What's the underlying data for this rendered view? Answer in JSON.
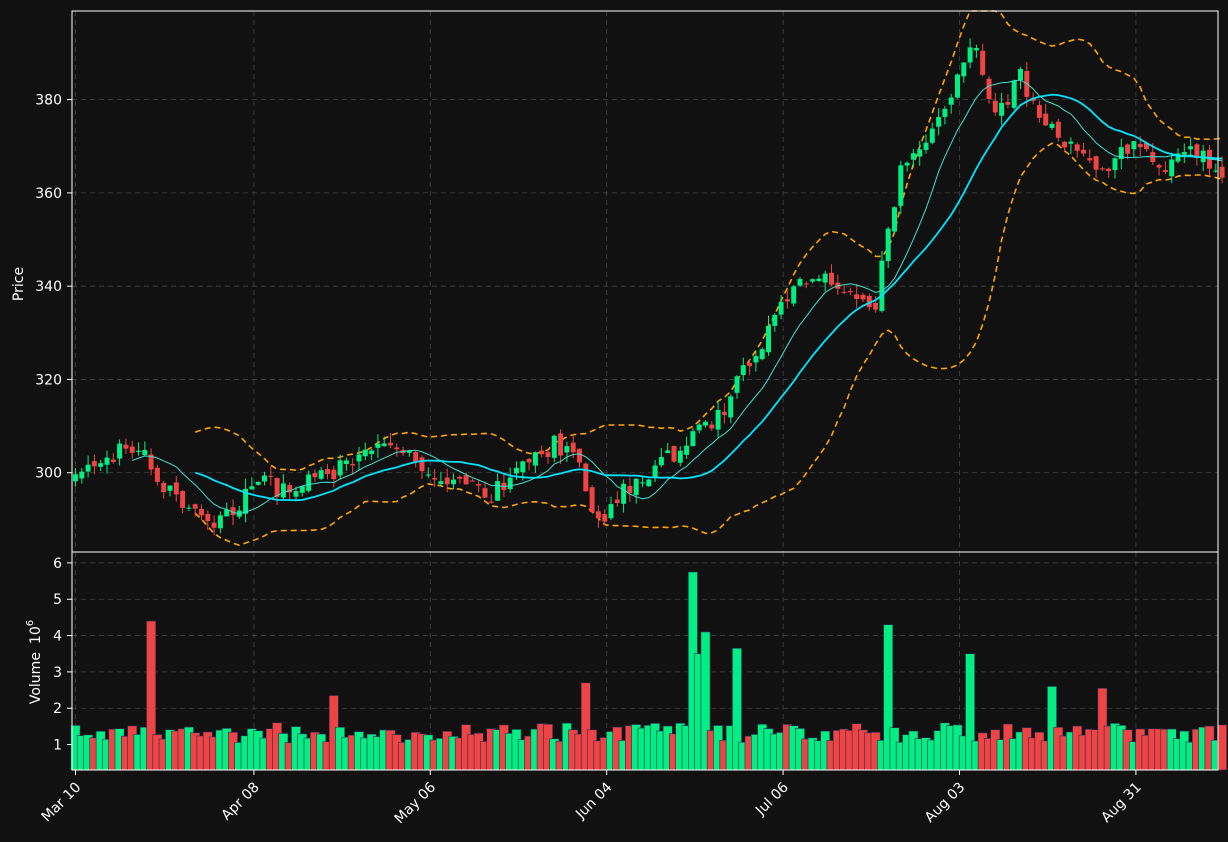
{
  "chart_data": [
    {
      "type": "candlestick",
      "panel": "price",
      "ylabel": "Price",
      "ylim": [
        283,
        399
      ],
      "yticks": [
        "300",
        "320",
        "340",
        "360",
        "380"
      ],
      "grid": true,
      "date_start": "2024-03-10",
      "xticks": [
        "Mar 10",
        "Apr 08",
        "May 06",
        "Jun 04",
        "Jul 06",
        "Aug 03",
        "Aug 31"
      ],
      "close_path": [
        [
          "2024-03-10",
          300
        ],
        [
          "2024-03-16",
          304
        ],
        [
          "2024-03-20",
          305
        ],
        [
          "2024-03-25",
          296
        ],
        [
          "2024-03-31",
          288
        ],
        [
          "2024-04-04",
          292
        ],
        [
          "2024-04-08",
          298
        ],
        [
          "2024-04-13",
          296
        ],
        [
          "2024-04-18",
          299
        ],
        [
          "2024-04-23",
          302
        ],
        [
          "2024-04-28",
          306
        ],
        [
          "2024-05-03",
          302
        ],
        [
          "2024-05-10",
          297
        ],
        [
          "2024-05-15",
          295
        ],
        [
          "2024-05-19",
          300
        ],
        [
          "2024-05-25",
          306
        ],
        [
          "2024-05-29",
          302
        ],
        [
          "2024-06-01",
          289
        ],
        [
          "2024-06-04",
          295
        ],
        [
          "2024-06-10",
          300
        ],
        [
          "2024-06-15",
          307
        ],
        [
          "2024-06-20",
          312
        ],
        [
          "2024-06-27",
          328
        ],
        [
          "2024-07-01",
          338
        ],
        [
          "2024-07-06",
          342
        ],
        [
          "2024-07-11",
          338
        ],
        [
          "2024-07-15",
          336
        ],
        [
          "2024-07-19",
          366
        ],
        [
          "2024-07-24",
          372
        ],
        [
          "2024-07-29",
          388
        ],
        [
          "2024-07-31",
          392
        ],
        [
          "2024-08-03",
          376
        ],
        [
          "2024-08-07",
          385
        ],
        [
          "2024-08-10",
          376
        ],
        [
          "2024-08-14",
          370
        ],
        [
          "2024-08-20",
          365
        ],
        [
          "2024-08-25",
          370
        ],
        [
          "2024-08-30",
          366
        ],
        [
          "2024-09-03",
          370
        ],
        [
          "2024-09-08",
          365
        ]
      ],
      "overlays": [
        {
          "kind": "moving_average",
          "color": "#40e0d0"
        },
        {
          "kind": "moving_average",
          "color": "#00e5ff"
        },
        {
          "kind": "bollinger_band",
          "color": "#ffa500"
        }
      ],
      "up_color": "#00ee82",
      "down_color": "#ee4444",
      "background": "#111111",
      "grid_color": "#444444"
    },
    {
      "type": "bar",
      "panel": "volume",
      "ylabel": "Volume",
      "ylabel_exp": "6",
      "ylabel_exp_base": "10",
      "ylim": [
        0.3,
        6.3
      ],
      "yticks": [
        "1",
        "2",
        "3",
        "4",
        "5",
        "6"
      ],
      "grid": true,
      "peaks": [
        [
          "2024-03-22",
          4.4
        ],
        [
          "2024-04-20",
          2.35
        ],
        [
          "2024-05-30",
          2.7
        ],
        [
          "2024-06-16",
          5.75
        ],
        [
          "2024-06-17",
          3.5
        ],
        [
          "2024-06-18",
          4.1
        ],
        [
          "2024-06-23",
          3.65
        ],
        [
          "2024-07-17",
          4.3
        ],
        [
          "2024-07-30",
          3.5
        ],
        [
          "2024-08-12",
          2.6
        ],
        [
          "2024-08-20",
          2.55
        ]
      ],
      "base_level": 1.3
    }
  ]
}
